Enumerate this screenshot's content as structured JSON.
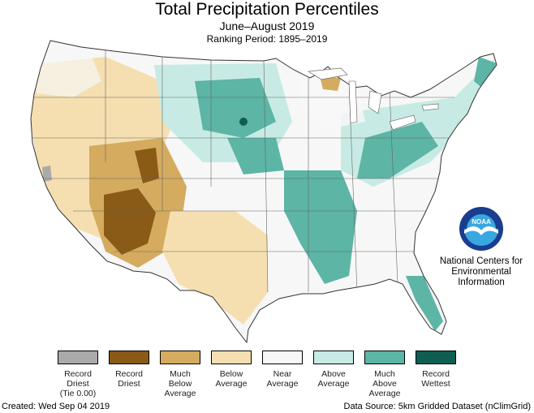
{
  "header": {
    "title": "Total Precipitation Percentiles",
    "subtitle": "June–August 2019",
    "ranking_period": "Ranking Period: 1895–2019"
  },
  "logo": {
    "name": "noaa-logo",
    "text": "NOAA",
    "org_line1": "National Centers for",
    "org_line2": "Environmental",
    "org_line3": "Information",
    "colors": {
      "outer": "#1a3d8f",
      "inner": "#39a7e0",
      "bird": "#ffffff"
    }
  },
  "legend": {
    "items": [
      {
        "line1": "Record",
        "line2": "Driest",
        "line3": "(Tie 0.00)",
        "color": "#aaaaaa"
      },
      {
        "line1": "Record",
        "line2": "Driest",
        "line3": "",
        "color": "#8a5a17"
      },
      {
        "line1": "Much",
        "line2": "Below",
        "line3": "Average",
        "color": "#d4ab5f"
      },
      {
        "line1": "Below",
        "line2": "Average",
        "line3": "",
        "color": "#f5dfb0"
      },
      {
        "line1": "Near",
        "line2": "Average",
        "line3": "",
        "color": "#f7f7f7"
      },
      {
        "line1": "Above",
        "line2": "Average",
        "line3": "",
        "color": "#c7ebe4"
      },
      {
        "line1": "Much",
        "line2": "Above",
        "line3": "Average",
        "color": "#5cb5a5"
      },
      {
        "line1": "Record",
        "line2": "Wettest",
        "line3": "",
        "color": "#0f5e52"
      }
    ]
  },
  "footer": {
    "created": "Created: Wed Sep 04 2019",
    "source": "Data Source: 5km Gridded Dataset (nClimGrid)"
  },
  "map_colors": {
    "near": "#f7f7f7",
    "below": "#f5dfb0",
    "much_below": "#d4ab5f",
    "record_dry": "#8a5a17",
    "above": "#c7ebe4",
    "much_above": "#5cb5a5",
    "record_wet": "#0f5e52",
    "tie": "#aaaaaa",
    "border": "#555555"
  }
}
